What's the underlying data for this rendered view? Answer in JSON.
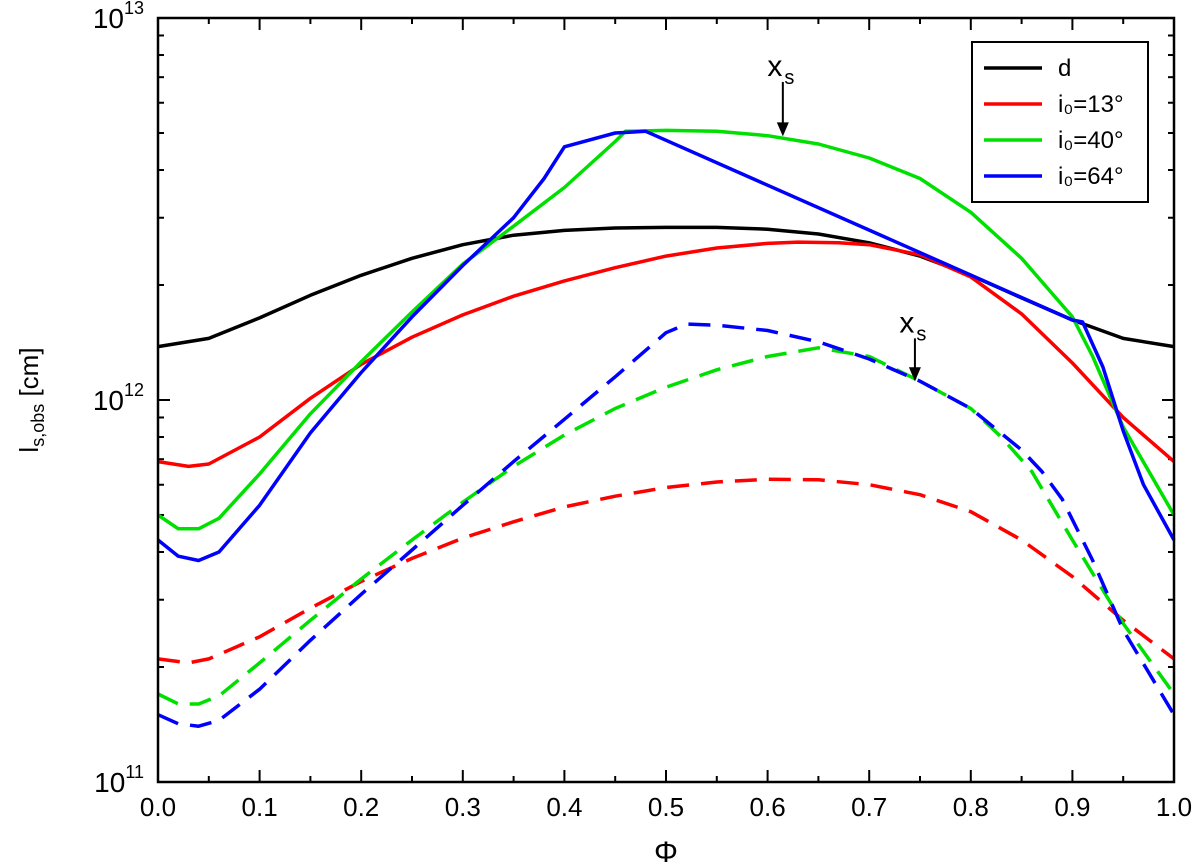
{
  "chart_data": {
    "type": "line",
    "xlabel": "Φ",
    "ylabel": {
      "main": "l",
      "sub": "s,obs",
      "unit": " [cm]"
    },
    "xlim": [
      0.0,
      1.0
    ],
    "ylim": [
      100000000000.0,
      10000000000000.0
    ],
    "yscale": "log",
    "xticks": [
      "0.0",
      "0.1",
      "0.2",
      "0.3",
      "0.4",
      "0.5",
      "0.6",
      "0.7",
      "0.8",
      "0.9",
      "1.0"
    ],
    "yticks": [
      {
        "base": "10",
        "exp": "11"
      },
      {
        "base": "10",
        "exp": "12"
      },
      {
        "base": "10",
        "exp": "13"
      }
    ],
    "legend": {
      "placement": "top-right",
      "entries": [
        {
          "label": "d",
          "color": "#000000"
        },
        {
          "label": "i₀=13°",
          "color": "#ff0000"
        },
        {
          "label": "i₀=40°",
          "color": "#00e000"
        },
        {
          "label": "i₀=64°",
          "color": "#0000ff"
        }
      ]
    },
    "annotations": [
      {
        "text": "x",
        "sub": "s",
        "x": 0.615,
        "y_from": 6800000000000.0,
        "y_to": 4900000000000.0
      },
      {
        "text": "x",
        "sub": "s",
        "x": 0.745,
        "y_from": 1450000000000.0,
        "y_to": 1120000000000.0
      }
    ],
    "series": [
      {
        "name": "d",
        "color": "#000000",
        "dash": "solid",
        "x": [
          0.0,
          0.05,
          0.1,
          0.15,
          0.2,
          0.25,
          0.3,
          0.35,
          0.4,
          0.45,
          0.5,
          0.55,
          0.6,
          0.65,
          0.7,
          0.75,
          0.8,
          0.85,
          0.9,
          0.95,
          1.0
        ],
        "y": [
          1380000000000.0,
          1450000000000.0,
          1640000000000.0,
          1880000000000.0,
          2120000000000.0,
          2350000000000.0,
          2550000000000.0,
          2700000000000.0,
          2780000000000.0,
          2820000000000.0,
          2830000000000.0,
          2830000000000.0,
          2800000000000.0,
          2720000000000.0,
          2580000000000.0,
          2380000000000.0,
          2120000000000.0,
          1850000000000.0,
          1620000000000.0,
          1450000000000.0,
          1380000000000.0
        ]
      },
      {
        "name": "i₀=13°",
        "color": "#ff0000",
        "dash": "solid",
        "x": [
          0.0,
          0.03,
          0.05,
          0.1,
          0.15,
          0.2,
          0.25,
          0.3,
          0.35,
          0.4,
          0.45,
          0.5,
          0.55,
          0.6,
          0.63,
          0.67,
          0.7,
          0.75,
          0.8,
          0.85,
          0.9,
          0.95,
          1.0
        ],
        "y": [
          690000000000.0,
          670000000000.0,
          680000000000.0,
          800000000000.0,
          1010000000000.0,
          1240000000000.0,
          1460000000000.0,
          1670000000000.0,
          1870000000000.0,
          2050000000000.0,
          2220000000000.0,
          2380000000000.0,
          2500000000000.0,
          2570000000000.0,
          2590000000000.0,
          2580000000000.0,
          2550000000000.0,
          2400000000000.0,
          2100000000000.0,
          1680000000000.0,
          1250000000000.0,
          900000000000.0,
          690000000000.0
        ]
      },
      {
        "name": "i₀=40°",
        "color": "#00e000",
        "dash": "solid",
        "x": [
          0.0,
          0.02,
          0.04,
          0.06,
          0.1,
          0.15,
          0.2,
          0.25,
          0.3,
          0.35,
          0.4,
          0.45,
          0.46,
          0.5,
          0.55,
          0.6,
          0.65,
          0.7,
          0.75,
          0.8,
          0.85,
          0.88,
          0.9,
          0.92,
          0.95,
          1.0
        ],
        "y": [
          500000000000.0,
          460000000000.0,
          460000000000.0,
          490000000000.0,
          640000000000.0,
          920000000000.0,
          1260000000000.0,
          1700000000000.0,
          2270000000000.0,
          2850000000000.0,
          3600000000000.0,
          4750000000000.0,
          5050000000000.0,
          5080000000000.0,
          5050000000000.0,
          4920000000000.0,
          4680000000000.0,
          4300000000000.0,
          3800000000000.0,
          3100000000000.0,
          2350000000000.0,
          1900000000000.0,
          1650000000000.0,
          1300000000000.0,
          850000000000.0,
          500000000000.0
        ]
      },
      {
        "name": "i₀=64°",
        "color": "#0000ff",
        "dash": "solid",
        "x": [
          0.0,
          0.02,
          0.04,
          0.06,
          0.1,
          0.15,
          0.2,
          0.25,
          0.3,
          0.35,
          0.38,
          0.4,
          0.45,
          0.48,
          0.9,
          0.91,
          0.93,
          0.95,
          0.97,
          1.0
        ],
        "y": [
          430000000000.0,
          390000000000.0,
          380000000000.0,
          400000000000.0,
          530000000000.0,
          820000000000.0,
          1180000000000.0,
          1650000000000.0,
          2250000000000.0,
          3000000000000.0,
          3800000000000.0,
          4600000000000.0,
          5000000000000.0,
          5050000000000.0,
          1620000000000.0,
          1600000000000.0,
          1220000000000.0,
          830000000000.0,
          600000000000.0,
          430000000000.0
        ]
      },
      {
        "name": "",
        "color": "#ff0000",
        "dash": "dashed",
        "x": [
          0.0,
          0.03,
          0.05,
          0.1,
          0.15,
          0.2,
          0.25,
          0.3,
          0.35,
          0.4,
          0.45,
          0.5,
          0.55,
          0.6,
          0.65,
          0.7,
          0.75,
          0.8,
          0.85,
          0.9,
          0.95,
          1.0
        ],
        "y": [
          210000000000.0,
          205000000000.0,
          210000000000.0,
          240000000000.0,
          285000000000.0,
          335000000000.0,
          385000000000.0,
          435000000000.0,
          480000000000.0,
          525000000000.0,
          560000000000.0,
          590000000000.0,
          610000000000.0,
          620000000000.0,
          618000000000.0,
          600000000000.0,
          565000000000.0,
          510000000000.0,
          430000000000.0,
          345000000000.0,
          265000000000.0,
          210000000000.0
        ]
      },
      {
        "name": "",
        "color": "#00e000",
        "dash": "dashed",
        "x": [
          0.0,
          0.02,
          0.04,
          0.06,
          0.1,
          0.15,
          0.2,
          0.25,
          0.3,
          0.35,
          0.4,
          0.45,
          0.5,
          0.55,
          0.6,
          0.65,
          0.7,
          0.75,
          0.8,
          0.83,
          0.86,
          0.9,
          0.95,
          1.0
        ],
        "y": [
          170000000000.0,
          160000000000.0,
          160000000000.0,
          168000000000.0,
          205000000000.0,
          265000000000.0,
          340000000000.0,
          430000000000.0,
          540000000000.0,
          670000000000.0,
          810000000000.0,
          950000000000.0,
          1080000000000.0,
          1200000000000.0,
          1300000000000.0,
          1370000000000.0,
          1300000000000.0,
          1120000000000.0,
          950000000000.0,
          800000000000.0,
          650000000000.0,
          430000000000.0,
          260000000000.0,
          170000000000.0
        ]
      },
      {
        "name": "",
        "color": "#0000ff",
        "dash": "dashed",
        "x": [
          0.0,
          0.02,
          0.04,
          0.06,
          0.1,
          0.15,
          0.2,
          0.25,
          0.3,
          0.35,
          0.4,
          0.45,
          0.5,
          0.52,
          0.55,
          0.6,
          0.65,
          0.7,
          0.75,
          0.8,
          0.85,
          0.87,
          0.89,
          0.92,
          0.95,
          1.0
        ],
        "y": [
          150000000000.0,
          142000000000.0,
          140000000000.0,
          145000000000.0,
          175000000000.0,
          235000000000.0,
          310000000000.0,
          405000000000.0,
          530000000000.0,
          690000000000.0,
          890000000000.0,
          1150000000000.0,
          1500000000000.0,
          1580000000000.0,
          1570000000000.0,
          1520000000000.0,
          1420000000000.0,
          1280000000000.0,
          1120000000000.0,
          950000000000.0,
          740000000000.0,
          650000000000.0,
          550000000000.0,
          380000000000.0,
          250000000000.0,
          150000000000.0
        ]
      }
    ]
  }
}
